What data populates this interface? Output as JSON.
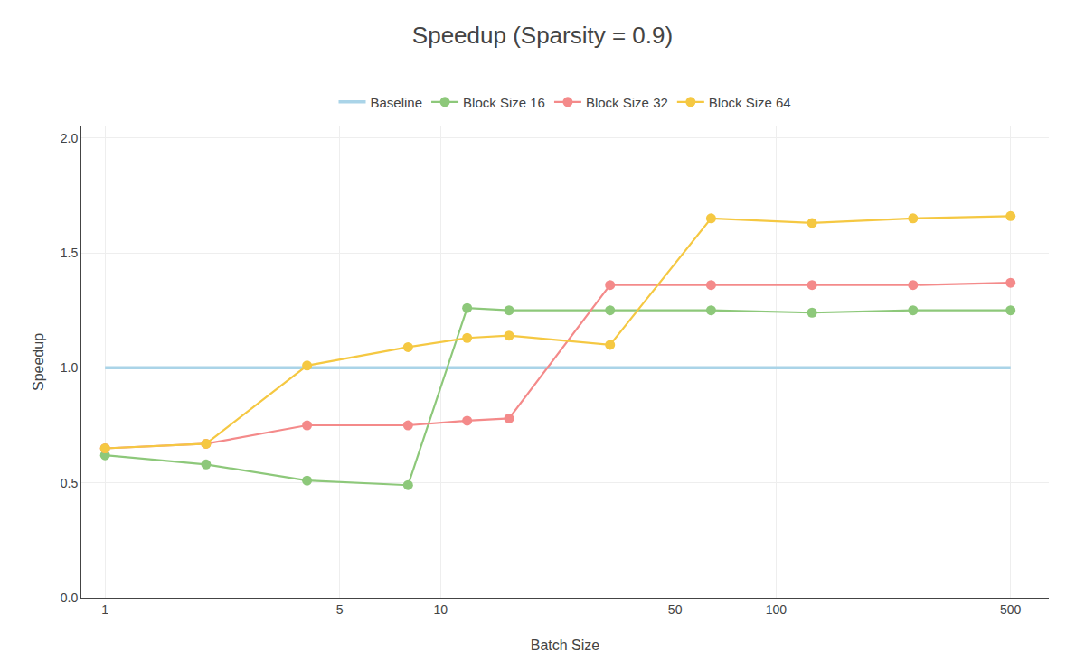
{
  "chart_data": {
    "type": "line",
    "title": "Speedup (Sparsity = 0.9)",
    "xlabel": "Batch Size",
    "ylabel": "Speedup",
    "x": [
      1,
      2,
      4,
      8,
      12,
      16,
      32,
      64,
      128,
      256,
      500
    ],
    "series": [
      {
        "name": "Baseline",
        "color": "#aad4e8",
        "marker": "none",
        "line_style": "solid",
        "values": [
          1.0,
          1.0,
          1.0,
          1.0,
          1.0,
          1.0,
          1.0,
          1.0,
          1.0,
          1.0,
          1.0
        ]
      },
      {
        "name": "Block Size 16",
        "color": "#8dc87a",
        "marker": "circle",
        "line_style": "solid",
        "values": [
          0.62,
          0.58,
          0.51,
          0.49,
          1.26,
          1.25,
          1.25,
          1.25,
          1.24,
          1.25,
          1.25
        ]
      },
      {
        "name": "Block Size 32",
        "color": "#f48a8a",
        "marker": "circle",
        "line_style": "solid",
        "values": [
          0.65,
          0.67,
          0.75,
          0.75,
          0.77,
          0.78,
          1.36,
          1.36,
          1.36,
          1.36,
          1.37
        ]
      },
      {
        "name": "Block Size 64",
        "color": "#f5c842",
        "marker": "circle",
        "line_style": "solid",
        "values": [
          0.65,
          0.67,
          1.01,
          1.09,
          1.13,
          1.14,
          1.1,
          1.65,
          1.63,
          1.65,
          1.66
        ]
      }
    ],
    "log": "x",
    "xlim": [
      0.85,
      650
    ],
    "xticks": [
      1,
      5,
      10,
      50,
      100,
      500
    ],
    "ylim": [
      0.0,
      2.05
    ],
    "yticks": [
      {
        "value": 0.0,
        "label": "0.0"
      },
      0.5,
      {
        "value": 1.0,
        "label": "1.0"
      },
      1.5,
      {
        "value": 2.0,
        "label": "2.0"
      }
    ],
    "grid": true,
    "legend": "top"
  }
}
